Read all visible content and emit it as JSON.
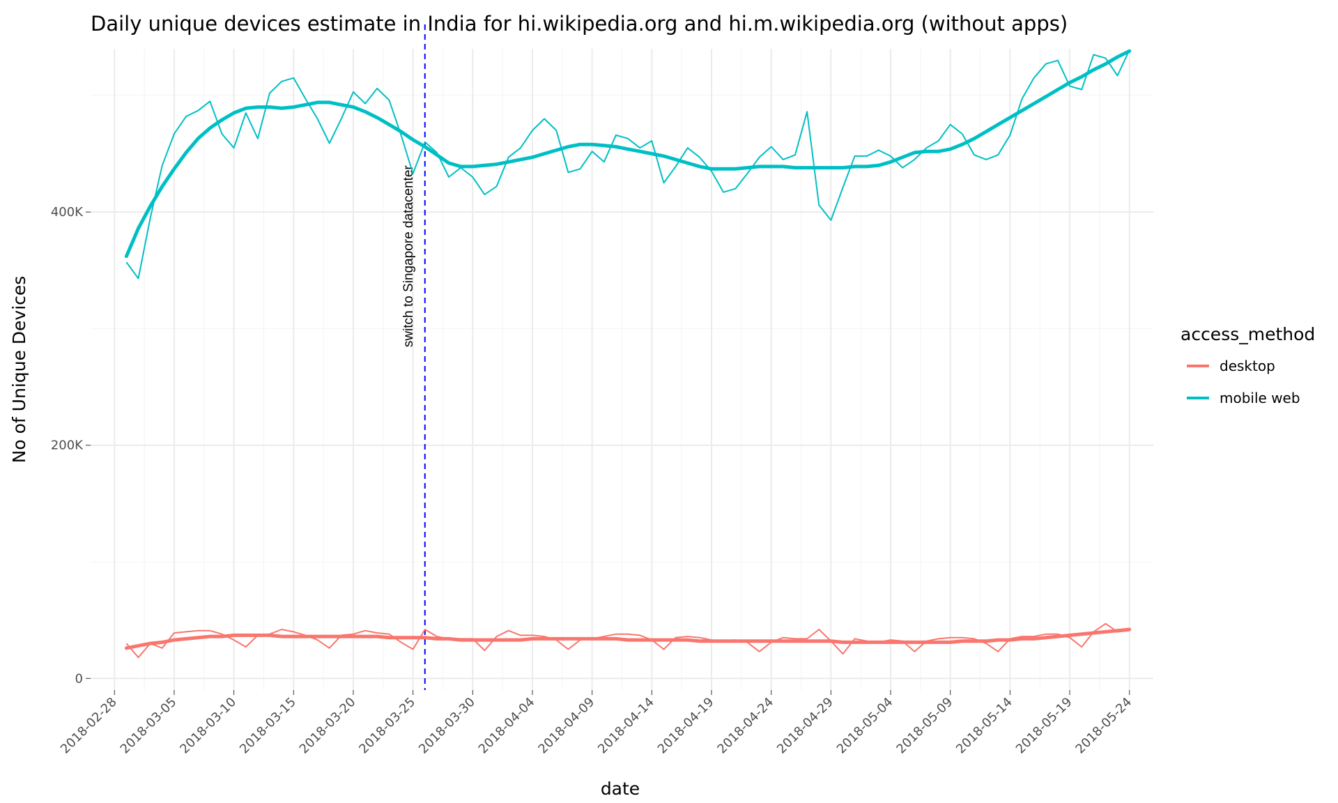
{
  "chart_data": {
    "type": "line",
    "title": "Daily unique devices estimate in India for hi.wikipedia.org and hi.m.wikipedia.org (without apps)",
    "xlabel": "date",
    "ylabel": "No of Unique Devices",
    "x_tick_labels": [
      "2018-02-28",
      "2018-03-05",
      "2018-03-10",
      "2018-03-15",
      "2018-03-20",
      "2018-03-25",
      "2018-03-30",
      "2018-04-04",
      "2018-04-09",
      "2018-04-14",
      "2018-04-19",
      "2018-04-24",
      "2018-04-29",
      "2018-05-04",
      "2018-05-09",
      "2018-05-14",
      "2018-05-19",
      "2018-05-24"
    ],
    "y_tick_values": [
      0,
      200000,
      400000
    ],
    "y_tick_labels": [
      "0",
      "200K",
      "400K"
    ],
    "xlim": [
      "2018-02-26",
      "2018-05-26"
    ],
    "ylim": [
      -10000,
      540000
    ],
    "grid": true,
    "legend": {
      "title": "access_method",
      "placement": "right",
      "entries": [
        {
          "label": "desktop",
          "color": "#F8766D"
        },
        {
          "label": "mobile web",
          "color": "#00BFC4"
        }
      ]
    },
    "annotation": {
      "date": "2018-03-26",
      "label": "switch to Singapore datacenter",
      "color": "#0000ff",
      "style": "dashed"
    },
    "start_date": "2018-03-01",
    "series": [
      {
        "name": "mobile web",
        "color": "#00BFC4",
        "values": [
          357000,
          343000,
          395000,
          440000,
          467000,
          482000,
          487000,
          495000,
          467000,
          455000,
          485000,
          463000,
          502000,
          512000,
          515000,
          497000,
          480000,
          459000,
          480000,
          503000,
          493000,
          506000,
          496000,
          466000,
          433000,
          460000,
          451000,
          430000,
          438000,
          430000,
          415000,
          422000,
          447000,
          455000,
          470000,
          480000,
          470000,
          434000,
          437000,
          452000,
          443000,
          466000,
          463000,
          455000,
          461000,
          425000,
          439000,
          455000,
          447000,
          435000,
          417000,
          420000,
          433000,
          447000,
          456000,
          445000,
          449000,
          486000,
          406000,
          393000,
          421000,
          448000,
          448000,
          453000,
          448000,
          438000,
          445000,
          455000,
          461000,
          475000,
          467000,
          449000,
          445000,
          449000,
          466000,
          497000,
          515000,
          527000,
          530000,
          508000,
          505000,
          535000,
          532000,
          517000,
          539000
        ],
        "trend": [
          362000,
          386000,
          405000,
          422000,
          437000,
          451000,
          463000,
          472000,
          479000,
          485000,
          489000,
          490000,
          490000,
          489000,
          490000,
          492000,
          494000,
          494000,
          492000,
          490000,
          486000,
          481000,
          475000,
          469000,
          462000,
          456000,
          449000,
          442000,
          439000,
          439000,
          440000,
          441000,
          443000,
          445000,
          447000,
          450000,
          453000,
          456000,
          458000,
          458000,
          457000,
          456000,
          454000,
          452000,
          450000,
          448000,
          445000,
          442000,
          439000,
          437000,
          437000,
          437000,
          438000,
          439000,
          439000,
          439000,
          438000,
          438000,
          438000,
          438000,
          438000,
          439000,
          439000,
          440000,
          443000,
          447000,
          451000,
          452000,
          452000,
          454000,
          458000,
          463000,
          469000,
          475000,
          481000,
          487000,
          493000,
          499000,
          505000,
          511000,
          516000,
          522000,
          527000,
          533000,
          538000
        ]
      },
      {
        "name": "desktop",
        "color": "#F8766D",
        "values": [
          30000,
          18000,
          30000,
          26000,
          39000,
          40000,
          41000,
          41000,
          38000,
          33000,
          27000,
          37000,
          38000,
          42000,
          40000,
          37000,
          33000,
          26000,
          37000,
          38000,
          41000,
          39000,
          38000,
          31000,
          25000,
          42000,
          36000,
          34000,
          34000,
          34000,
          24000,
          36000,
          41000,
          37000,
          37000,
          36000,
          33000,
          25000,
          33000,
          34000,
          36000,
          38000,
          38000,
          37000,
          33000,
          25000,
          35000,
          36000,
          35000,
          33000,
          32000,
          33000,
          31000,
          23000,
          31000,
          35000,
          34000,
          34000,
          42000,
          32000,
          21000,
          34000,
          32000,
          31000,
          33000,
          32000,
          23000,
          32000,
          34000,
          35000,
          35000,
          34000,
          30000,
          23000,
          34000,
          36000,
          36000,
          38000,
          38000,
          35000,
          27000,
          40000,
          47000,
          40000,
          41000
        ],
        "trend": [
          26000,
          28000,
          30000,
          31000,
          33000,
          34000,
          35000,
          36000,
          36000,
          37000,
          37000,
          37000,
          37000,
          36000,
          36000,
          36000,
          36000,
          36000,
          36000,
          36000,
          36000,
          36000,
          35000,
          35000,
          35000,
          35000,
          34000,
          34000,
          33000,
          33000,
          33000,
          33000,
          33000,
          33000,
          34000,
          34000,
          34000,
          34000,
          34000,
          34000,
          34000,
          34000,
          33000,
          33000,
          33000,
          33000,
          33000,
          33000,
          32000,
          32000,
          32000,
          32000,
          32000,
          32000,
          32000,
          32000,
          32000,
          32000,
          32000,
          32000,
          31000,
          31000,
          31000,
          31000,
          31000,
          31000,
          31000,
          31000,
          31000,
          31000,
          32000,
          32000,
          32000,
          33000,
          33000,
          34000,
          34000,
          35000,
          36000,
          37000,
          38000,
          39000,
          40000,
          41000,
          42000
        ]
      }
    ]
  }
}
